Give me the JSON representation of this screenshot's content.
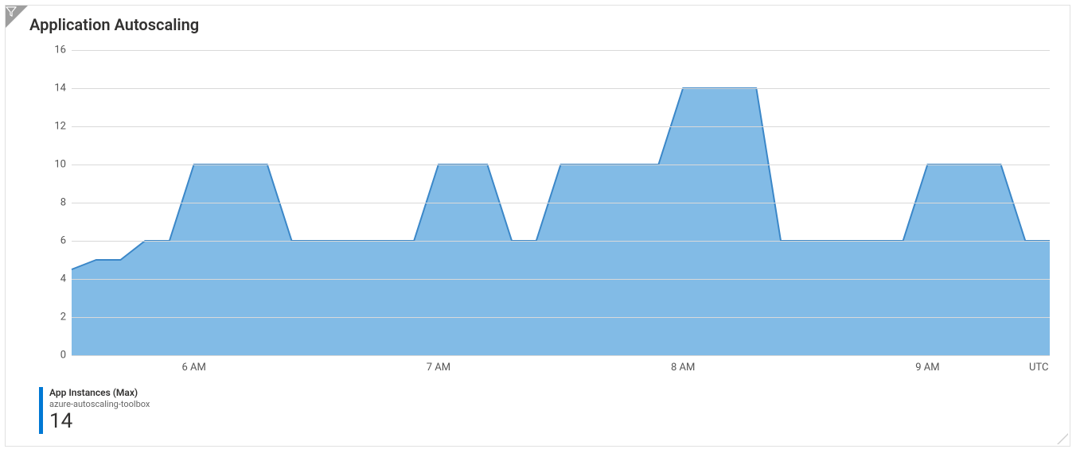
{
  "panel": {
    "title": "Application Autoscaling",
    "filter_icon": "funnel-icon",
    "border_color": "#e1e1e1",
    "background_color": "#ffffff"
  },
  "chart": {
    "type": "area",
    "y": {
      "min": 0,
      "max": 16,
      "ticks": [
        0,
        2,
        4,
        6,
        8,
        10,
        12,
        14,
        16
      ],
      "label_fontsize": 13,
      "label_color": "#555555",
      "grid_color": "#d9d9d9"
    },
    "x": {
      "min": 0,
      "max": 240,
      "ticks": [
        {
          "pos": 30,
          "label": "6 AM"
        },
        {
          "pos": 90,
          "label": "7 AM"
        },
        {
          "pos": 150,
          "label": "8 AM"
        },
        {
          "pos": 210,
          "label": "9 AM"
        }
      ],
      "timezone_label": "UTC",
      "label_fontsize": 13,
      "label_color": "#555555"
    },
    "series": {
      "name": "App Instances (Max)",
      "resource": "azure-autoscaling-toolbox",
      "current_value": "14",
      "stroke_color": "#3b87c8",
      "fill_color": "#82bbe6",
      "fill_opacity": 1.0,
      "stroke_width": 2,
      "accent_color": "#0078d4",
      "points": [
        {
          "x": 0,
          "y": 4.5
        },
        {
          "x": 6,
          "y": 5
        },
        {
          "x": 12,
          "y": 5
        },
        {
          "x": 18,
          "y": 6
        },
        {
          "x": 24,
          "y": 6
        },
        {
          "x": 30,
          "y": 10
        },
        {
          "x": 48,
          "y": 10
        },
        {
          "x": 54,
          "y": 6
        },
        {
          "x": 84,
          "y": 6
        },
        {
          "x": 90,
          "y": 10
        },
        {
          "x": 102,
          "y": 10
        },
        {
          "x": 108,
          "y": 6
        },
        {
          "x": 114,
          "y": 6
        },
        {
          "x": 120,
          "y": 10
        },
        {
          "x": 144,
          "y": 10
        },
        {
          "x": 150,
          "y": 14
        },
        {
          "x": 168,
          "y": 14
        },
        {
          "x": 174,
          "y": 6
        },
        {
          "x": 204,
          "y": 6
        },
        {
          "x": 210,
          "y": 10
        },
        {
          "x": 228,
          "y": 10
        },
        {
          "x": 234,
          "y": 6
        },
        {
          "x": 240,
          "y": 6
        }
      ]
    }
  },
  "legend": {
    "series_label": "App Instances (Max)",
    "subtitle": "azure-autoscaling-toolbox",
    "value": "14"
  }
}
